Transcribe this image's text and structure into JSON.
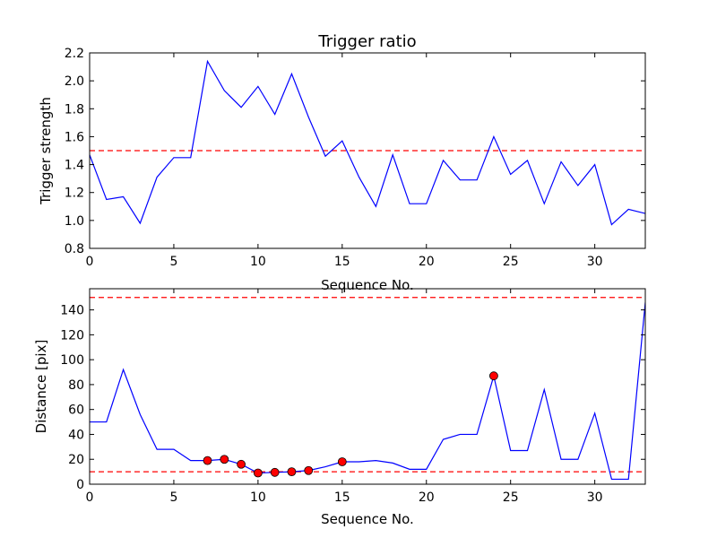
{
  "chart_data": [
    {
      "type": "line",
      "title": "Trigger ratio",
      "xlabel": "Sequence No.",
      "ylabel": "Trigger strength",
      "xlim": [
        0,
        33
      ],
      "ylim": [
        0.8,
        2.2
      ],
      "xticks": [
        0,
        5,
        10,
        15,
        20,
        25,
        30
      ],
      "xtick_labels": [
        "0",
        "5",
        "10",
        "15",
        "20",
        "25",
        "30"
      ],
      "yticks": [
        0.8,
        1.0,
        1.2,
        1.4,
        1.6,
        1.8,
        2.0,
        2.2
      ],
      "ytick_labels": [
        "0.8",
        "1.0",
        "1.2",
        "1.4",
        "1.6",
        "1.8",
        "2.0",
        "2.2"
      ],
      "series": [
        {
          "color": "#0000ff",
          "x": [
            0,
            1,
            2,
            3,
            4,
            5,
            6,
            7,
            8,
            9,
            10,
            11,
            12,
            13,
            14,
            15,
            16,
            17,
            18,
            19,
            20,
            21,
            22,
            23,
            24,
            25,
            26,
            27,
            28,
            29,
            30,
            31,
            32,
            33
          ],
          "y": [
            1.47,
            1.15,
            1.17,
            0.98,
            1.31,
            1.45,
            1.45,
            2.14,
            1.93,
            1.81,
            1.96,
            1.76,
            2.05,
            1.74,
            1.46,
            1.57,
            1.31,
            1.1,
            1.47,
            1.12,
            1.12,
            1.43,
            1.29,
            1.29,
            1.6,
            1.33,
            1.43,
            1.12,
            1.42,
            1.25,
            1.4,
            0.97,
            1.08,
            1.05
          ]
        }
      ],
      "hlines": [
        {
          "y": 1.5,
          "color": "#ff0000",
          "style": "dashed"
        }
      ],
      "grid": false
    },
    {
      "type": "line",
      "title": "",
      "xlabel": "Sequence No.",
      "ylabel": "Distance [pix]",
      "xlim": [
        0,
        33
      ],
      "ylim": [
        0,
        157
      ],
      "xticks": [
        0,
        5,
        10,
        15,
        20,
        25,
        30
      ],
      "xtick_labels": [
        "0",
        "5",
        "10",
        "15",
        "20",
        "25",
        "30"
      ],
      "yticks": [
        0,
        20,
        40,
        60,
        80,
        100,
        120,
        140
      ],
      "ytick_labels": [
        "0",
        "20",
        "40",
        "60",
        "80",
        "100",
        "120",
        "140"
      ],
      "series": [
        {
          "color": "#0000ff",
          "x": [
            0,
            1,
            2,
            3,
            4,
            5,
            6,
            7,
            8,
            9,
            10,
            11,
            12,
            13,
            14,
            15,
            16,
            17,
            18,
            19,
            20,
            21,
            22,
            23,
            24,
            25,
            26,
            27,
            28,
            29,
            30,
            31,
            32,
            33
          ],
          "y": [
            50,
            50,
            92,
            56,
            28,
            28,
            19,
            19,
            20,
            16,
            9,
            9.5,
            10,
            11,
            14,
            18,
            18,
            19,
            17,
            12,
            12,
            36,
            40,
            40,
            87,
            27,
            27,
            76,
            20,
            20,
            57,
            4,
            4,
            146
          ]
        }
      ],
      "markers": {
        "color": "#ff0000",
        "x": [
          7,
          8,
          9,
          10,
          11,
          12,
          13,
          15,
          24
        ],
        "y": [
          19,
          20,
          16,
          9,
          9.5,
          10,
          11,
          18,
          87
        ]
      },
      "hlines": [
        {
          "y": 10,
          "color": "#ff0000",
          "style": "dashed"
        },
        {
          "y": 150,
          "color": "#ff0000",
          "style": "dashed"
        }
      ],
      "grid": false
    }
  ]
}
